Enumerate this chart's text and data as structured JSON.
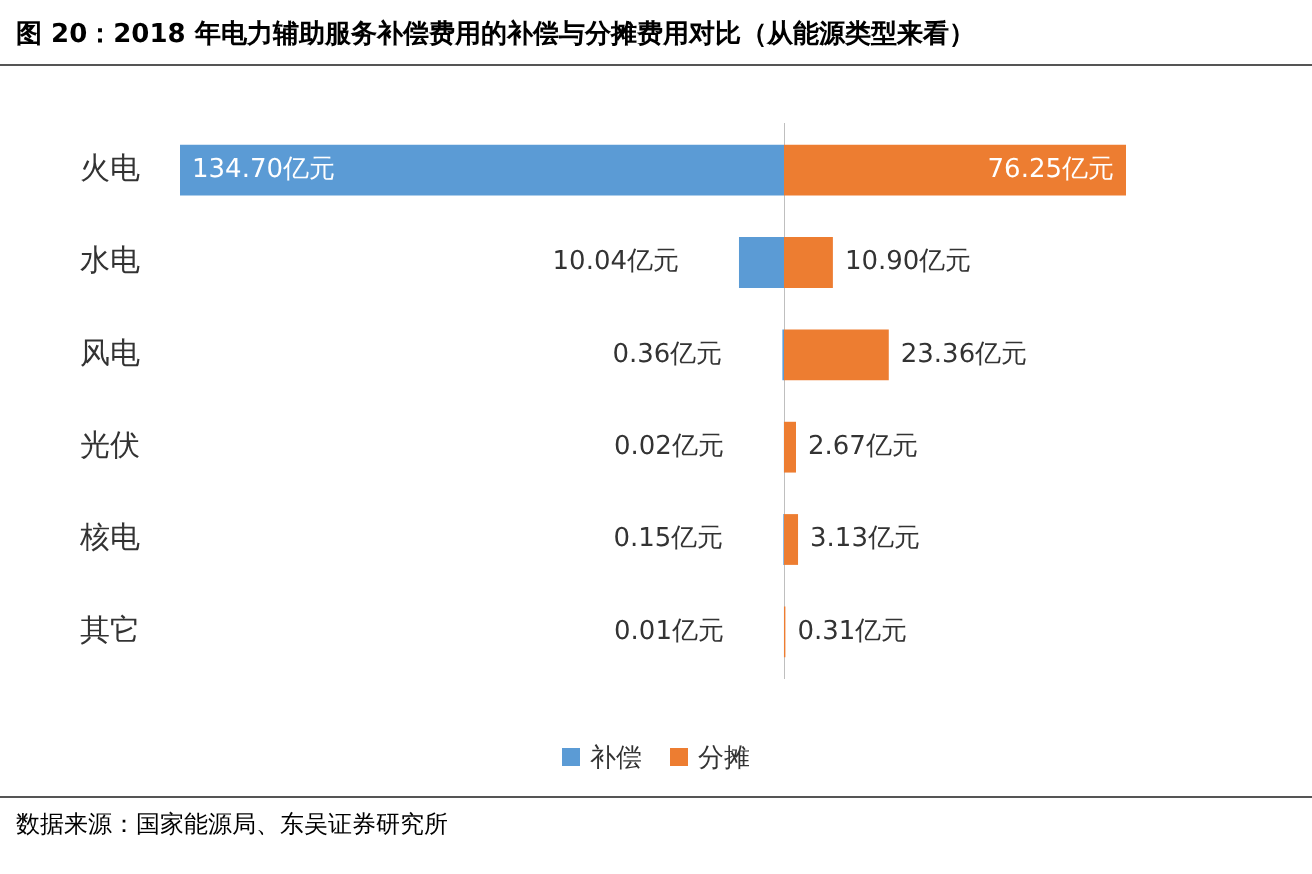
{
  "chart_data": [
    {
      "type": "bar",
      "orientation": "horizontal",
      "xlim": [
        134.7,
        0
      ],
      "title": "图 20：2018 年电力辅助服务补偿费用的补偿与分摊费用对比（从能源类型来看）",
      "categories": [
        "火电",
        "水电",
        "风电",
        "光伏",
        "核电",
        "其它"
      ],
      "series": [
        {
          "name": "补偿",
          "color": "#5b9bd5",
          "values": [
            134.7,
            10.04,
            0.36,
            0.02,
            0.15,
            0.01
          ],
          "value_labels": [
            "134.70亿元",
            "10.04亿元",
            "0.36亿元",
            "0.02亿元",
            "0.15亿元",
            "0.01亿元"
          ]
        }
      ],
      "tick_labels": "y",
      "grid": false,
      "legend": "bottom"
    },
    {
      "type": "bar",
      "orientation": "horizontal",
      "xlim": [
        0,
        76.25
      ],
      "categories": [
        null,
        null,
        null,
        null,
        null,
        null
      ],
      "series": [
        {
          "name": "分摊",
          "color": "#ed7d31",
          "values": [
            76.25,
            10.9,
            23.36,
            2.67,
            3.13,
            0.31
          ],
          "value_labels": [
            "76.25亿元",
            "10.90亿元",
            "23.36亿元",
            "2.67亿元",
            "3.13亿元",
            "0.31亿元"
          ]
        }
      ],
      "tick_labels": "y",
      "grid": false,
      "legend": "bottom",
      "annotations": [
        "数据来源：国家能源局、东吴证券研究所"
      ]
    }
  ]
}
